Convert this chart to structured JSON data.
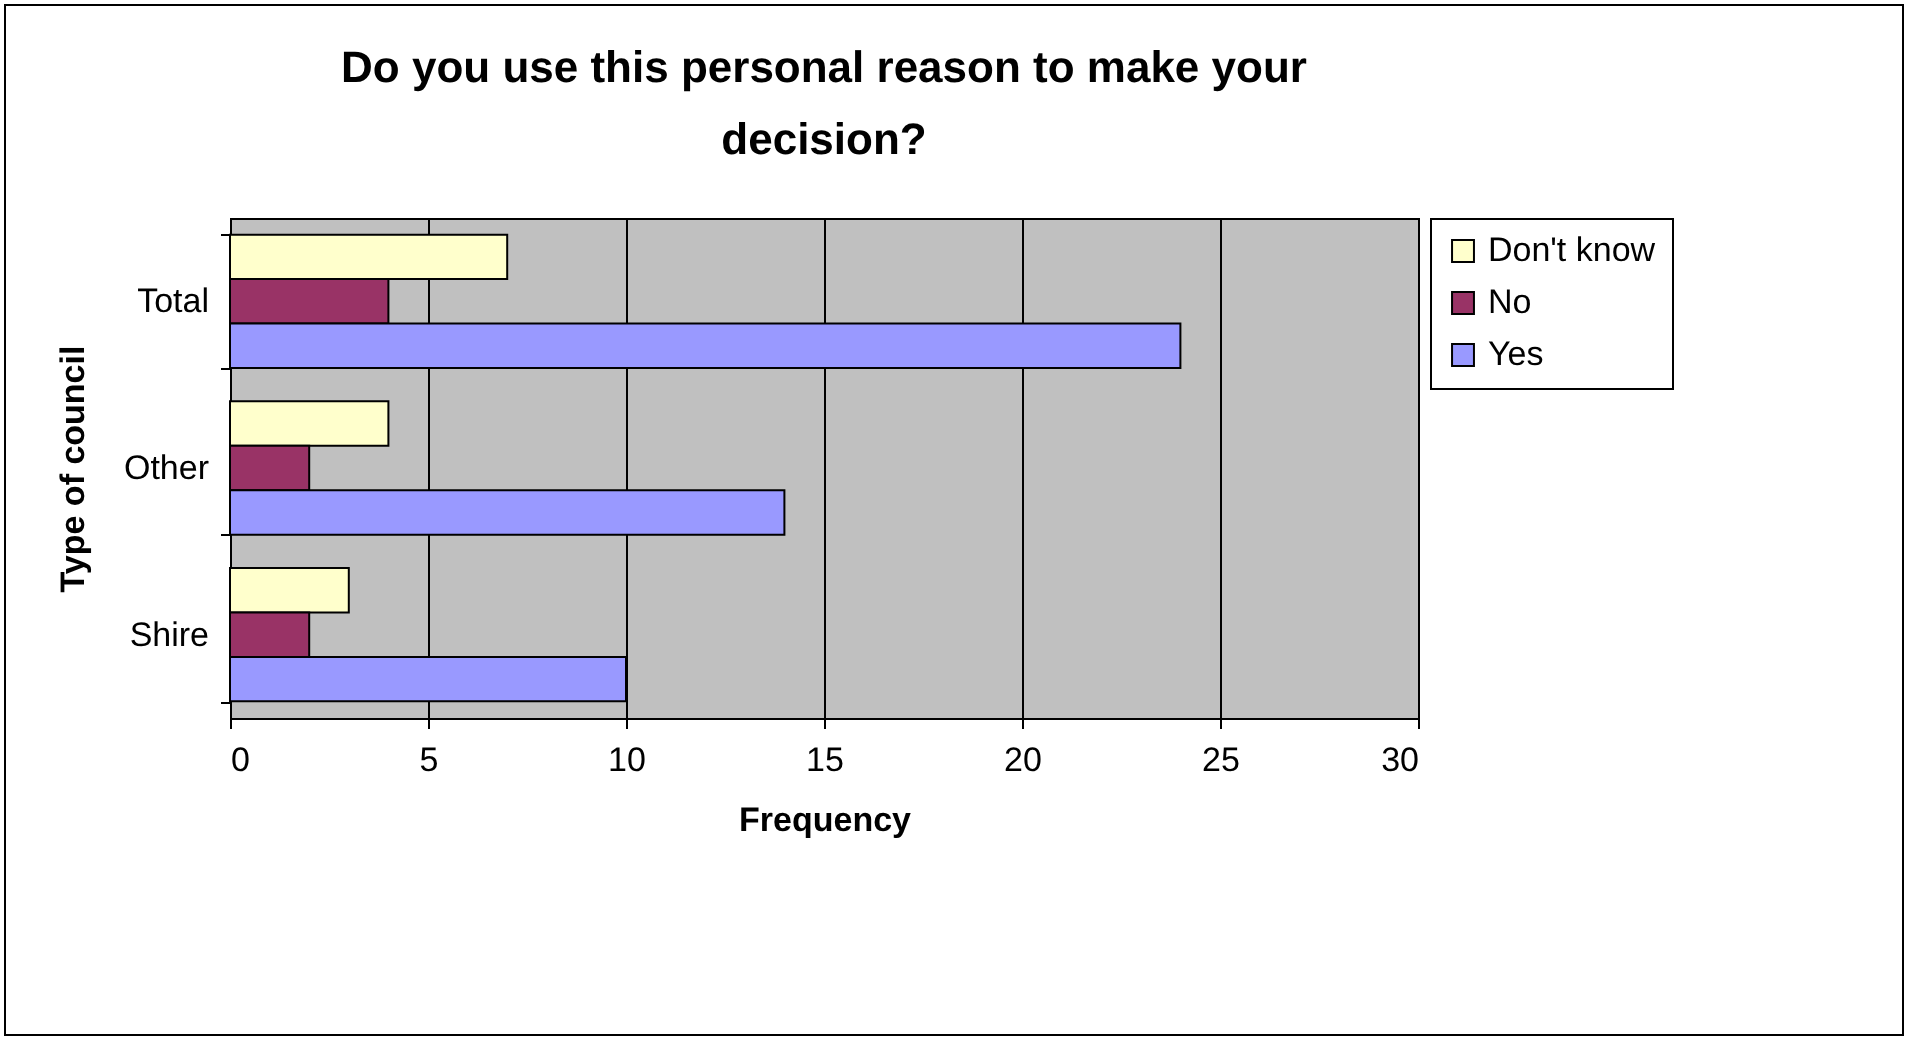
{
  "chart_data": {
    "type": "bar",
    "orientation": "horizontal",
    "title": "Do you use this personal reason to make your decision?",
    "xlabel": "Frequency",
    "ylabel": "Type of council",
    "categories": [
      "Total",
      "Other",
      "Shire"
    ],
    "series": [
      {
        "name": "Don't know",
        "color": "#ffffcc",
        "values": [
          7,
          4,
          3
        ]
      },
      {
        "name": "No",
        "color": "#993366",
        "values": [
          4,
          2,
          2
        ]
      },
      {
        "name": "Yes",
        "color": "#9999ff",
        "values": [
          24,
          14,
          10
        ]
      }
    ],
    "xlim": [
      0,
      30
    ],
    "xticks": [
      0,
      5,
      10,
      15,
      20,
      25,
      30
    ],
    "grid": "x",
    "legend": "right"
  }
}
